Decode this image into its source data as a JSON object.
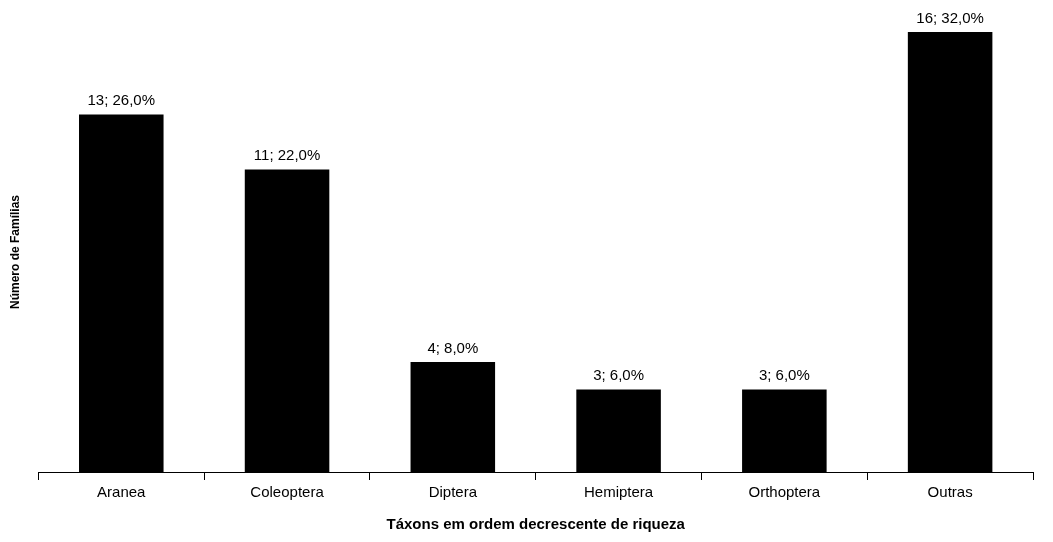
{
  "chart_data": {
    "type": "bar",
    "xlabel": "Táxons em ordem decrescente de riqueza",
    "ylabel": "Número de Famílias",
    "categories": [
      "Aranea",
      "Coleoptera",
      "Diptera",
      "Hemiptera",
      "Orthoptera",
      "Outras"
    ],
    "values": [
      13,
      11,
      4,
      3,
      3,
      16
    ],
    "color": "#000000",
    "value_labels": [
      "13; 26,0%",
      "11; 22,0%",
      "4; 8,0%",
      "3; 6,0%",
      "3; 6,0%",
      "16; 32,0%"
    ],
    "grid": false,
    "legend": false
  }
}
